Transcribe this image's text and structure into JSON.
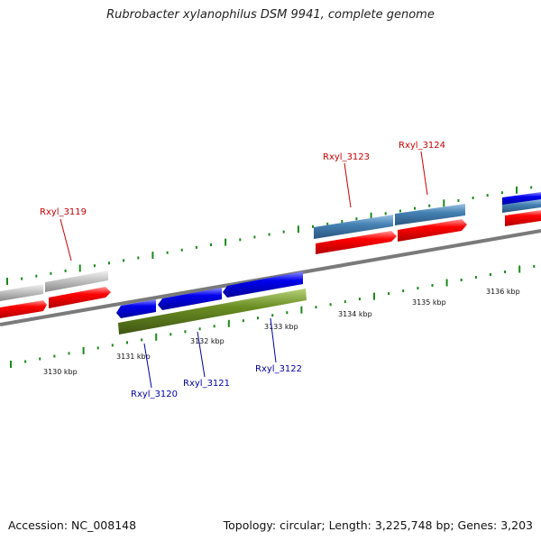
{
  "title": "Rubrobacter xylanophilus DSM 9941, complete genome",
  "accession": "Accession: NC_008148",
  "stats": "Topology: circular; Length: 3,225,748 bp; Genes: 3,203",
  "colors": {
    "forward_gene": "#ff0000",
    "reverse_gene": "#0000ee",
    "neighbor_gene": "#c8c8c8",
    "rna_band": "#4682b4",
    "olive_band": "#6b8e23",
    "backbone": "#808080",
    "tick": "#1a8a1a",
    "label_forward": "#cc0000",
    "label_reverse": "#0000aa"
  },
  "kbp_labels": [
    "3130 kbp",
    "3131 kbp",
    "3132 kbp",
    "3133 kbp",
    "3134 kbp",
    "3135 kbp",
    "3136 kbp"
  ],
  "genes": [
    {
      "name": "Rxyl_3119",
      "strand": "forward"
    },
    {
      "name": "Rxyl_3120",
      "strand": "reverse"
    },
    {
      "name": "Rxyl_3121",
      "strand": "reverse"
    },
    {
      "name": "Rxyl_3122",
      "strand": "reverse"
    },
    {
      "name": "Rxyl_3123",
      "strand": "forward"
    },
    {
      "name": "Rxyl_3124",
      "strand": "forward"
    }
  ]
}
